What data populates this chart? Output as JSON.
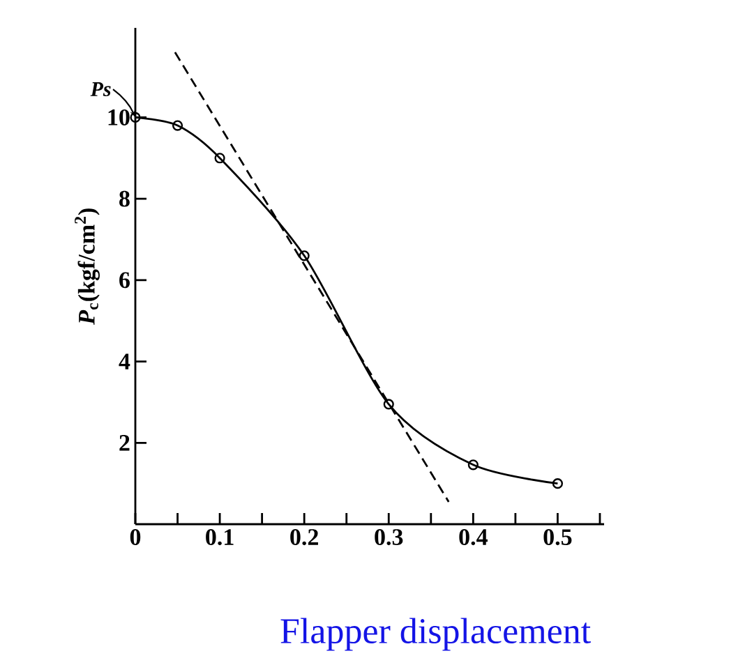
{
  "chart_data": {
    "type": "line",
    "xlabel": "Flapper displacement",
    "ylabel": "*P*$_{c}$(kgf/cm$^{2}$)",
    "xlim": [
      0,
      0.555
    ],
    "ylim": [
      0,
      12.2
    ],
    "xticks": [
      0,
      {
        "value": 0.05,
        "label": null
      },
      0.1,
      {
        "value": 0.15,
        "label": null
      },
      0.2,
      {
        "value": 0.25,
        "label": null
      },
      0.3,
      {
        "value": 0.35,
        "label": null
      },
      0.4,
      {
        "value": 0.45,
        "label": null
      },
      0.5,
      {
        "value": 0.55,
        "label": null
      }
    ],
    "yticks": [
      2,
      4,
      6,
      8,
      10
    ],
    "grid": false,
    "series": [
      {
        "color": "#000000",
        "x": [
          0,
          0.05,
          0.1,
          0.2,
          0.3,
          0.4,
          0.5
        ],
        "values": [
          10,
          9.8,
          9.0,
          6.6,
          2.95,
          1.46,
          1.0
        ],
        "marker": "circle",
        "line_style": "solid"
      },
      {
        "color": "#000000",
        "x": [
          0.047,
          0.371
        ],
        "values": [
          11.6,
          0.55
        ],
        "marker": "none",
        "line_style": "dashed"
      }
    ],
    "annotations": [
      {
        "text": "Ps",
        "x": 0,
        "y": 10
      }
    ]
  }
}
